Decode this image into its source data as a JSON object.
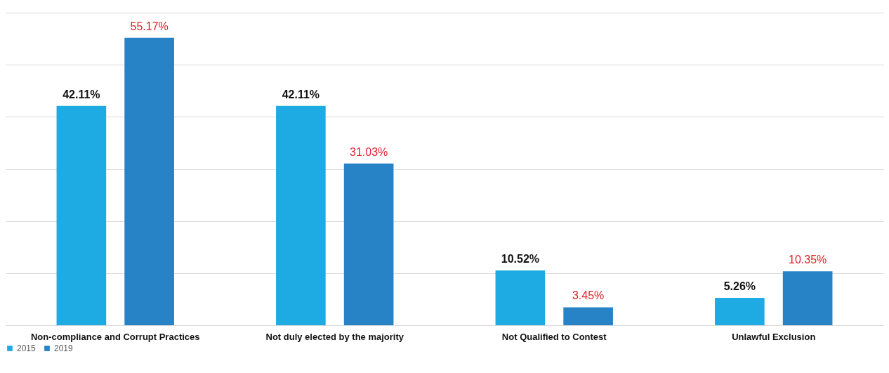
{
  "chart_data": {
    "type": "bar",
    "categories": [
      "Non-compliance and Corrupt Practices",
      "Not duly elected by the majority",
      "Not Qualified to Contest",
      "Unlawful Exclusion"
    ],
    "series": [
      {
        "name": "2015",
        "color": "#1eaae2",
        "values": [
          42.11,
          42.11,
          10.52,
          5.26
        ],
        "value_labels": [
          "42.11%",
          "42.11%",
          "10.52%",
          "5.26%"
        ]
      },
      {
        "name": "2019",
        "color": "#2882c6",
        "values": [
          55.17,
          31.03,
          3.45,
          10.35
        ],
        "value_labels": [
          "55.17%",
          "31.03%",
          "3.45%",
          "10.35%"
        ]
      }
    ],
    "ylim": [
      0,
      60
    ],
    "yticks": [
      {
        "value": 0,
        "label": null
      },
      {
        "value": 10,
        "label": null
      },
      {
        "value": 20,
        "label": null
      },
      {
        "value": 30,
        "label": null
      },
      {
        "value": 40,
        "label": null
      },
      {
        "value": 50,
        "label": null
      },
      {
        "value": 60,
        "label": null
      }
    ],
    "tick_labels": "x",
    "grid": "y",
    "legend": "bottom"
  }
}
